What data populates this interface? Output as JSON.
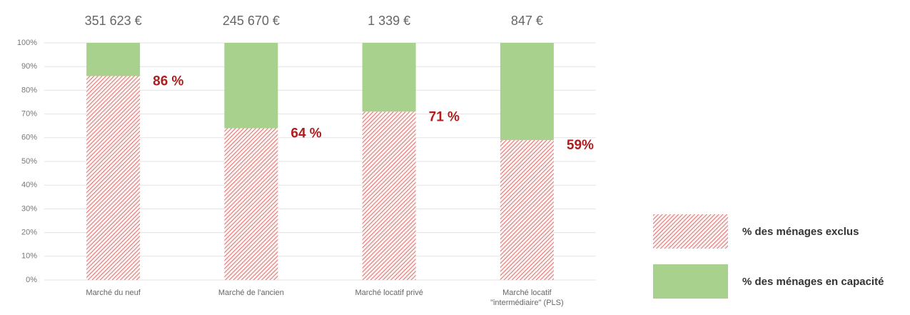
{
  "chart_data": {
    "type": "stacked_bar",
    "categories": [
      "Marché du neuf",
      "Marché de l'ancien",
      "Marché locatif privé",
      "Marché locatif \"intermédiaire\" (PLS)"
    ],
    "series": [
      {
        "name": "% des ménages exclus",
        "color": "#d9534f",
        "pattern": "hatch",
        "values": [
          86,
          64,
          71,
          59
        ],
        "value_labels": [
          "86 %",
          "64 %",
          "71 %",
          "59%"
        ]
      },
      {
        "name": "% des ménages en capacité",
        "color": "#a9d18e",
        "values": [
          14,
          36,
          29,
          41
        ]
      }
    ],
    "annotations": [
      "351 623 €",
      "245 670 €",
      "1 339 €",
      "847 €"
    ],
    "ylim": [
      0,
      100
    ],
    "yticks": [
      {
        "value": 0,
        "label": "0%"
      },
      {
        "value": 10,
        "label": "10%"
      },
      {
        "value": 20,
        "label": "20%"
      },
      {
        "value": 30,
        "label": "30%"
      },
      {
        "value": 40,
        "label": "40%"
      },
      {
        "value": 50,
        "label": "50%"
      },
      {
        "value": 60,
        "label": "60%"
      },
      {
        "value": 70,
        "label": "70%"
      },
      {
        "value": 80,
        "label": "80%"
      },
      {
        "value": 90,
        "label": "90%"
      },
      {
        "value": 100,
        "label": "100%"
      }
    ],
    "grid": true,
    "legend": "right"
  }
}
